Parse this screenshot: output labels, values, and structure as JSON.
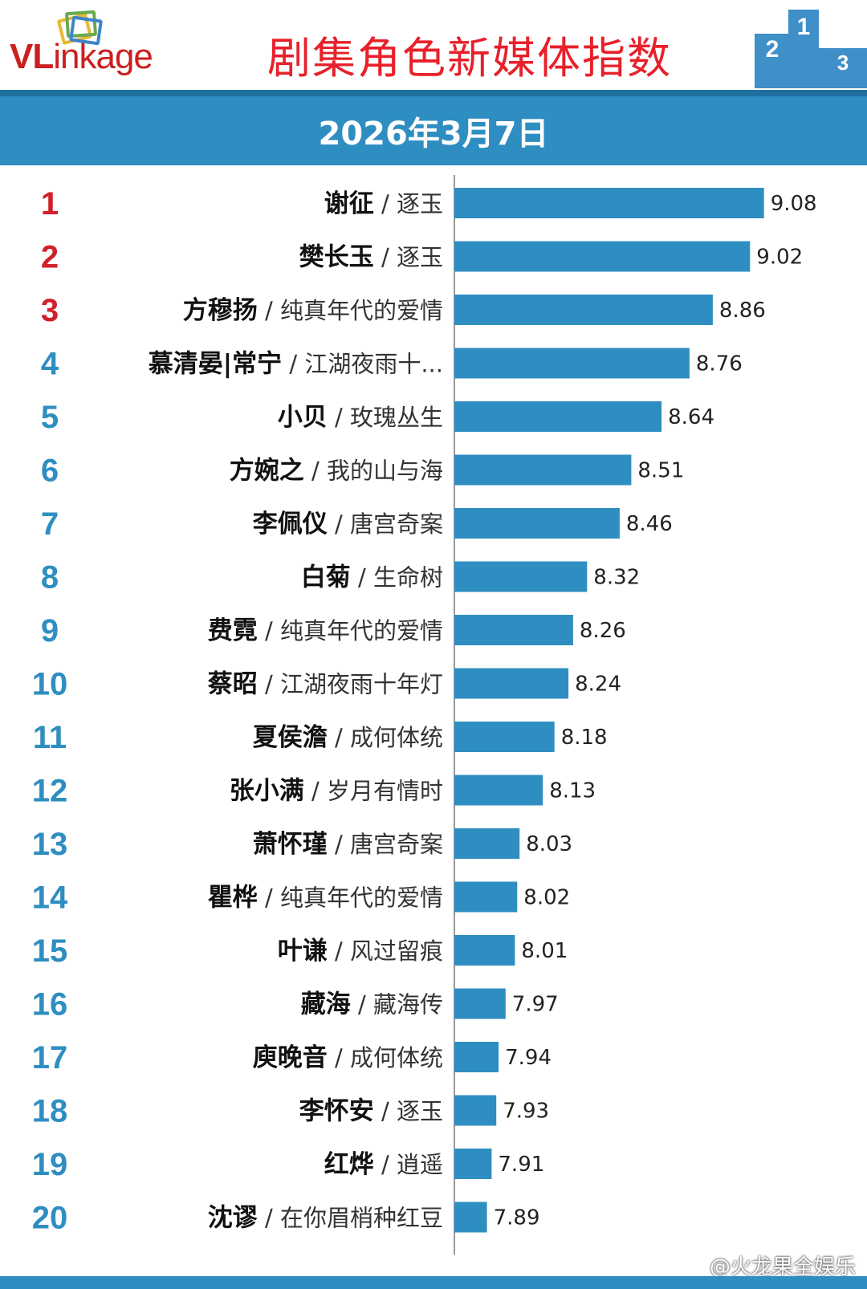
{
  "header": {
    "logo_text": "VLinkage",
    "logo_prefix": "VL",
    "logo_rest": "inkage",
    "title": "剧集角色新媒体指数",
    "podium_labels": [
      "2",
      "1",
      "3"
    ]
  },
  "date": "2026年3月7日",
  "watermark": "@火龙果全娱乐",
  "colors": {
    "bar": "#2f8ec1",
    "rank_top": "#d0202a",
    "rank_other": "#2f8ec1",
    "title": "#e8202a"
  },
  "chart_data": {
    "type": "bar",
    "orientation": "horizontal",
    "title": "剧集角色新媒体指数",
    "subtitle": "2026年3月7日",
    "xlim": [
      7.75,
      9.2
    ],
    "grid": false,
    "categories": [
      {
        "rank": "1",
        "name": "谢征",
        "drama": "逐玉"
      },
      {
        "rank": "2",
        "name": "樊长玉",
        "drama": "逐玉"
      },
      {
        "rank": "3",
        "name": "方穆扬",
        "drama": "纯真年代的爱情"
      },
      {
        "rank": "4",
        "name": "慕清晏|常宁",
        "drama": "江湖夜雨十..."
      },
      {
        "rank": "5",
        "name": "小贝",
        "drama": "玫瑰丛生"
      },
      {
        "rank": "6",
        "name": "方婉之",
        "drama": "我的山与海"
      },
      {
        "rank": "7",
        "name": "李佩仪",
        "drama": "唐宫奇案"
      },
      {
        "rank": "8",
        "name": "白菊",
        "drama": "生命树"
      },
      {
        "rank": "9",
        "name": "费霓",
        "drama": "纯真年代的爱情"
      },
      {
        "rank": "10",
        "name": "蔡昭",
        "drama": "江湖夜雨十年灯"
      },
      {
        "rank": "11",
        "name": "夏侯澹",
        "drama": "成何体统"
      },
      {
        "rank": "12",
        "name": "张小满",
        "drama": "岁月有情时"
      },
      {
        "rank": "13",
        "name": "萧怀瑾",
        "drama": "唐宫奇案"
      },
      {
        "rank": "14",
        "name": "瞿桦",
        "drama": "纯真年代的爱情"
      },
      {
        "rank": "15",
        "name": "叶谦",
        "drama": "风过留痕"
      },
      {
        "rank": "16",
        "name": "藏海",
        "drama": "藏海传"
      },
      {
        "rank": "17",
        "name": "庾晚音",
        "drama": "成何体统"
      },
      {
        "rank": "18",
        "name": "李怀安",
        "drama": "逐玉"
      },
      {
        "rank": "19",
        "name": "红烨",
        "drama": "逍遥"
      },
      {
        "rank": "20",
        "name": "沈谬",
        "drama": "在你眉梢种红豆"
      }
    ],
    "values": [
      9.08,
      9.02,
      8.86,
      8.76,
      8.64,
      8.51,
      8.46,
      8.32,
      8.26,
      8.24,
      8.18,
      8.13,
      8.03,
      8.02,
      8.01,
      7.97,
      7.94,
      7.93,
      7.91,
      7.89
    ],
    "value_labels": [
      "9.08",
      "9.02",
      "8.86",
      "8.76",
      "8.64",
      "8.51",
      "8.46",
      "8.32",
      "8.26",
      "8.24",
      "8.18",
      "8.13",
      "8.03",
      "8.02",
      "8.01",
      "7.97",
      "7.94",
      "7.93",
      "7.91",
      "7.89"
    ]
  }
}
